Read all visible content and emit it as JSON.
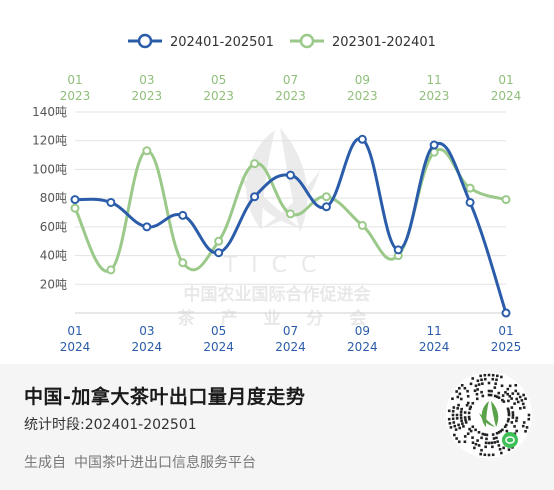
{
  "chart_data": {
    "type": "line",
    "series": [
      {
        "name": "202401-202501",
        "color": "#2a5caa",
        "values": [
          79,
          77,
          60,
          68,
          42,
          81,
          96,
          74,
          121,
          44,
          117,
          77,
          0
        ]
      },
      {
        "name": "202301-202401",
        "color": "#9bc98a",
        "values": [
          73,
          30,
          113,
          35,
          50,
          104,
          69,
          81,
          61,
          40,
          112,
          87,
          79
        ]
      }
    ],
    "x_top_ticks": [
      {
        "month": "01",
        "year": "2023"
      },
      {
        "month": "03",
        "year": "2023"
      },
      {
        "month": "05",
        "year": "2023"
      },
      {
        "month": "07",
        "year": "2023"
      },
      {
        "month": "09",
        "year": "2023"
      },
      {
        "month": "11",
        "year": "2023"
      },
      {
        "month": "01",
        "year": "2024"
      }
    ],
    "x_bottom_ticks": [
      {
        "month": "01",
        "year": "2024"
      },
      {
        "month": "03",
        "year": "2024"
      },
      {
        "month": "05",
        "year": "2024"
      },
      {
        "month": "07",
        "year": "2024"
      },
      {
        "month": "09",
        "year": "2024"
      },
      {
        "month": "11",
        "year": "2024"
      },
      {
        "month": "01",
        "year": "2025"
      }
    ],
    "y_ticks": [
      "20吨",
      "40吨",
      "60吨",
      "80吨",
      "100吨",
      "120吨",
      "140吨"
    ],
    "ylim": [
      0,
      140
    ],
    "grid": true,
    "legend_position": "top-center"
  },
  "watermark": {
    "letters": "TICC",
    "line1": "中国农业国际合作促进会",
    "line2": "茶 产 业 分 会"
  },
  "footer": {
    "title": "中国-加拿大茶叶出口量月度走势",
    "period_label": "统计时段:",
    "period_value": "202401-202501",
    "source_label": "生成自",
    "source_platform": "中国茶叶进出口信息服务平台"
  },
  "icons": {
    "qr": "qr-code-icon"
  }
}
